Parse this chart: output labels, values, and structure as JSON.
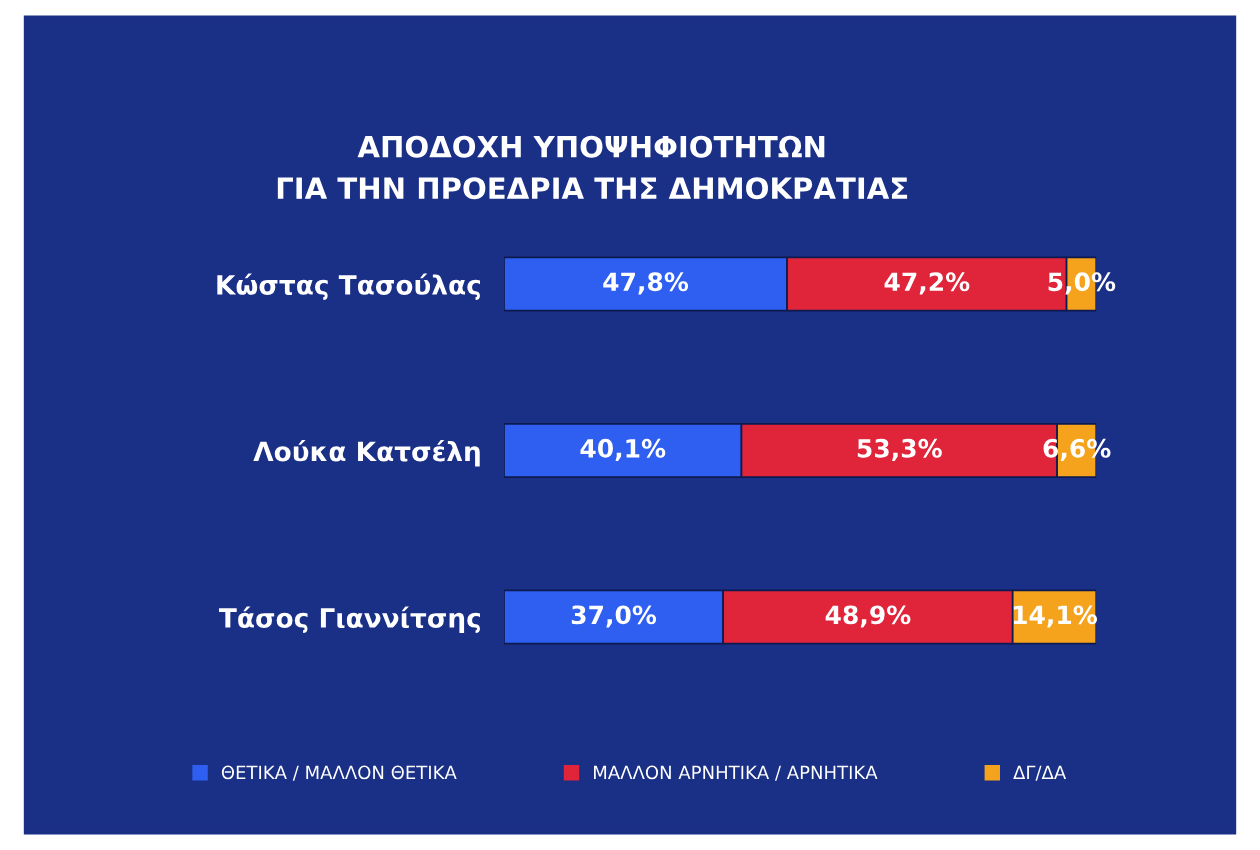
{
  "chart_data": {
    "type": "bar",
    "orientation": "horizontal",
    "stacked": true,
    "title": "ΑΠΟΔΟΧΗ ΥΠΟΨΗΦΙΟΤΗΤΩΝ\nΓΙΑ ΤΗΝ ΠΡΟΕΔΡΙΑ ΤΗΣ ΔΗΜΟΚΡΑΤΙΑΣ",
    "categories": [
      "Κώστας Τασούλας",
      "Λούκα Κατσέλη",
      "Τάσος Γιαννίτσης"
    ],
    "series": [
      {
        "name": "ΘΕΤΙΚΑ / ΜΑΛΛΟΝ ΘΕΤΙΚΑ",
        "color": "#2f5ff0",
        "values": [
          47.8,
          40.1,
          37.0
        ],
        "value_labels": [
          "47,8%",
          "40,1%",
          "37,0%"
        ]
      },
      {
        "name": "ΜΑΛΛΟΝ ΑΡΝΗΤΙΚΑ / ΑΡΝΗΤΙΚΑ",
        "color": "#e0243a",
        "values": [
          47.2,
          53.3,
          48.9
        ],
        "value_labels": [
          "47,2%",
          "53,3%",
          "48,9%"
        ]
      },
      {
        "name": "ΔΓ/ΔΑ",
        "color": "#f5a21c",
        "values": [
          5.0,
          6.6,
          14.1
        ],
        "value_labels": [
          "5,0%",
          "6,6%",
          "14,1%"
        ]
      }
    ],
    "grid": false,
    "legend": "bottom"
  }
}
